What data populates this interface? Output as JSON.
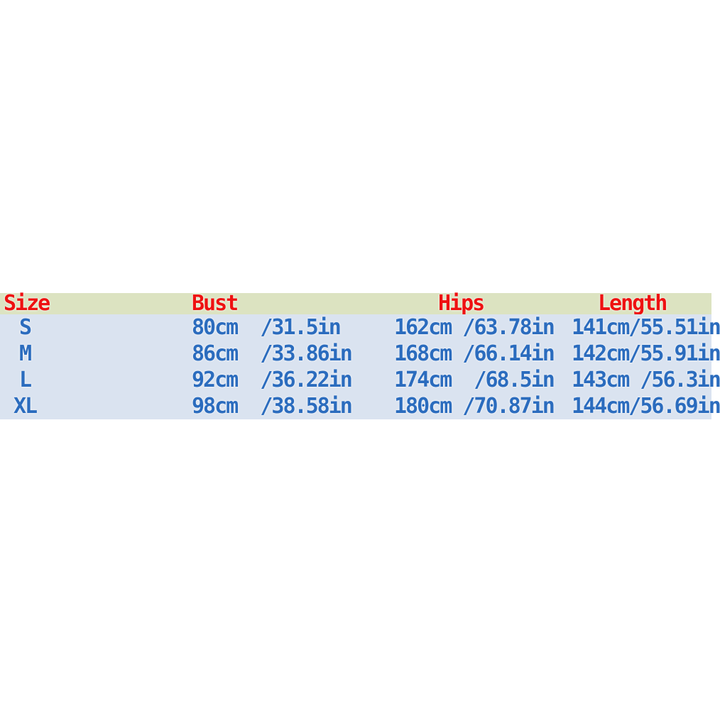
{
  "size_chart": {
    "colors": {
      "header_bg": "#dce3c1",
      "row_bg": "#dae3f0",
      "header_text": "#ee1111",
      "value_text": "#2b6cbe"
    },
    "headers": {
      "size": "Size",
      "bust": "Bust",
      "hips": "Hips",
      "length": "Length"
    },
    "rows": [
      {
        "size": "S",
        "bust": "80cm  /31.5in",
        "hips": "162cm /63.78in",
        "length": "141cm/55.51in"
      },
      {
        "size": "M",
        "bust": "86cm  /33.86in",
        "hips": "168cm /66.14in",
        "length": "142cm/55.91in"
      },
      {
        "size": "L",
        "bust": "92cm  /36.22in",
        "hips": "174cm  /68.5in",
        "length": "143cm /56.3in"
      },
      {
        "size": "XL",
        "bust": "98cm  /38.58in",
        "hips": "180cm /70.87in",
        "length": "144cm/56.69in"
      }
    ]
  },
  "chart_data": {
    "type": "table",
    "title": "",
    "columns": [
      "Size",
      "Bust",
      "Hips",
      "Length"
    ],
    "units": [
      "",
      "cm / in",
      "cm / in",
      "cm / in"
    ],
    "rows": [
      {
        "size": "S",
        "bust_cm": 80,
        "bust_in": 31.5,
        "hips_cm": 162,
        "hips_in": 63.78,
        "length_cm": 141,
        "length_in": 55.51
      },
      {
        "size": "M",
        "bust_cm": 86,
        "bust_in": 33.86,
        "hips_cm": 168,
        "hips_in": 66.14,
        "length_cm": 142,
        "length_in": 55.91
      },
      {
        "size": "L",
        "bust_cm": 92,
        "bust_in": 36.22,
        "hips_cm": 174,
        "hips_in": 68.5,
        "length_cm": 143,
        "length_in": 56.3
      },
      {
        "size": "XL",
        "bust_cm": 98,
        "bust_in": 38.58,
        "hips_cm": 180,
        "hips_in": 70.87,
        "length_cm": 144,
        "length_in": 56.69
      }
    ]
  }
}
